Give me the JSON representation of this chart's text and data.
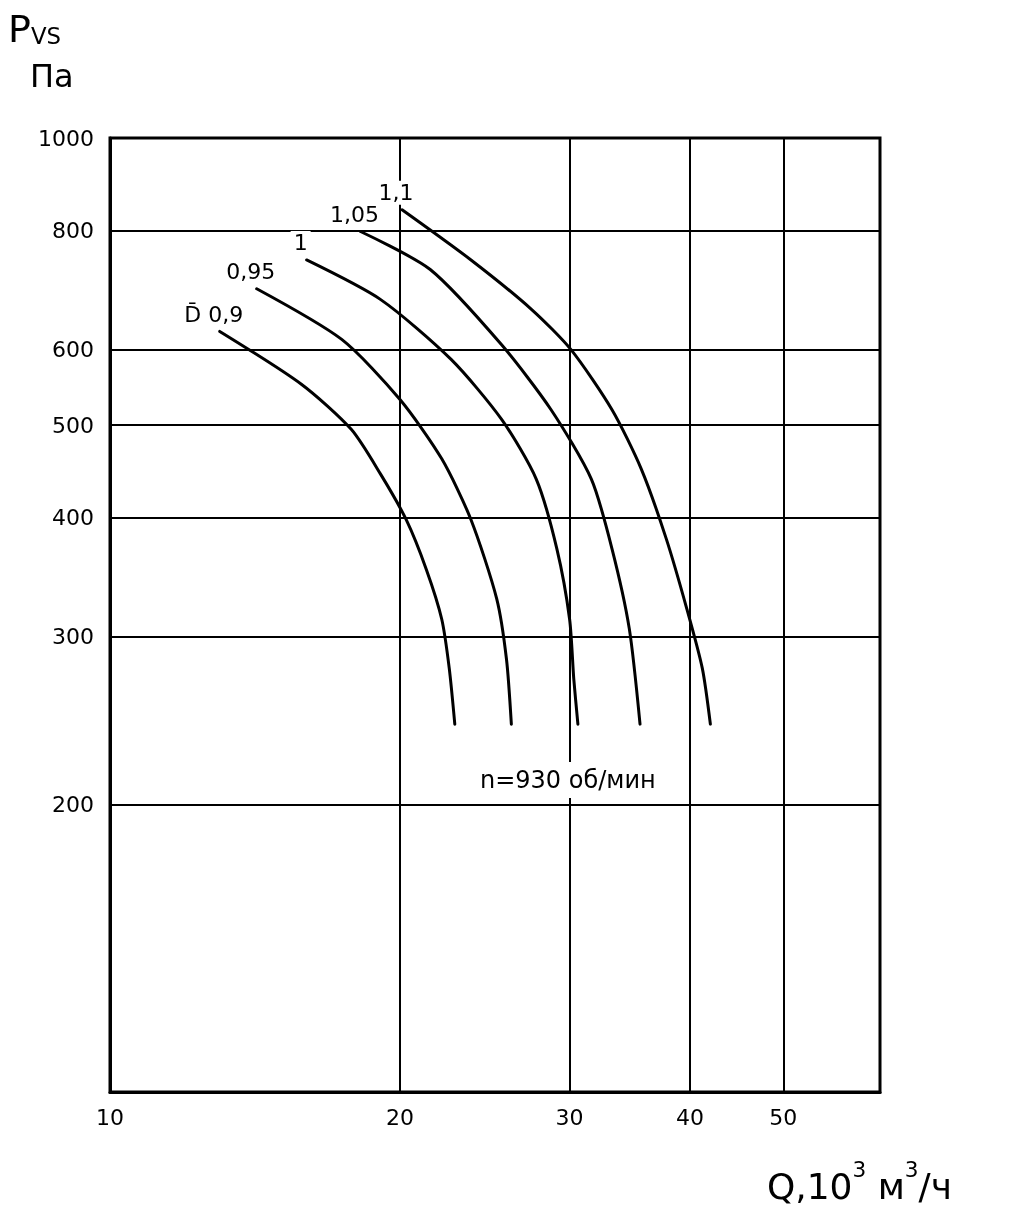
{
  "chart_data": {
    "type": "line",
    "xlabel": "Q,10$^{3}$ м$^{3}$/ч",
    "ylabel": "P$_{VS}$ Па",
    "log": "xy",
    "xlim": [
      10,
      63
    ],
    "ylim": [
      100,
      1000
    ],
    "xticks": [
      10,
      20,
      30,
      40,
      50
    ],
    "yticks": [
      200,
      300,
      400,
      500,
      600,
      800,
      1000
    ],
    "grid": true,
    "legend": false,
    "marker": "none",
    "line_style": "solid",
    "annotations": [
      "n=930 об/мин"
    ],
    "series": [
      {
        "name": "D̄ 0,9",
        "color": "#000000",
        "x": [
          13.0,
          15.8,
          17.8,
          19.1,
          20.3,
          21.3,
          22.1,
          22.5,
          22.8
        ],
        "values": [
          627,
          552,
          495,
          444,
          398,
          353,
          313,
          278,
          243
        ]
      },
      {
        "name": "0,95",
        "color": "#000000",
        "x": [
          14.2,
          17.4,
          20.0,
          22.1,
          23.7,
          25.2,
          25.8,
          26.1
        ],
        "values": [
          695,
          615,
          532,
          461,
          398,
          329,
          284,
          243
        ]
      },
      {
        "name": "1",
        "color": "#000000",
        "x": [
          16.0,
          19.1,
          22.6,
          25.5,
          27.7,
          29.1,
          30.0,
          30.3,
          30.6
        ],
        "values": [
          745,
          677,
          586,
          507,
          439,
          371,
          313,
          271,
          243
        ]
      },
      {
        "name": "1,05",
        "color": "#000000",
        "x": [
          18.2,
          21.5,
          25.5,
          28.7,
          31.6,
          33.2,
          34.6,
          35.5
        ],
        "values": [
          798,
          728,
          607,
          519,
          439,
          371,
          306,
          243
        ]
      },
      {
        "name": "1,1",
        "color": "#000000",
        "x": [
          20.1,
          23.7,
          27.4,
          30.1,
          33.2,
          35.6,
          37.8,
          39.7,
          41.2,
          42.0
        ],
        "values": [
          841,
          745,
          661,
          600,
          519,
          450,
          380,
          321,
          278,
          243
        ]
      }
    ]
  }
}
